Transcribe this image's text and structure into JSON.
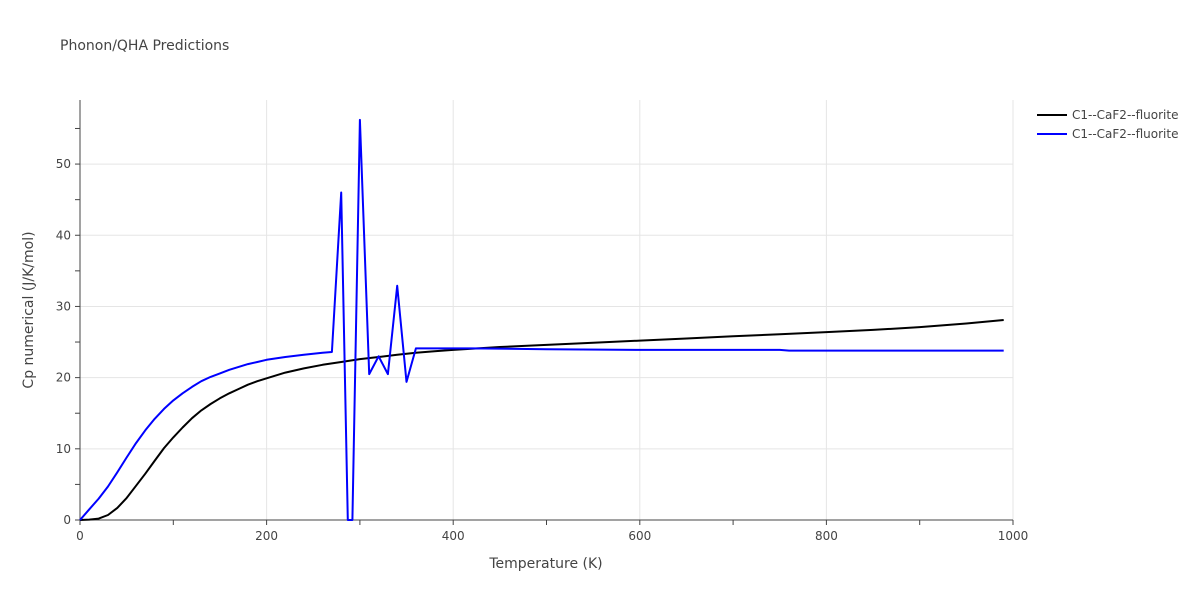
{
  "chart_data": {
    "type": "line",
    "title": "Phonon/QHA Predictions",
    "xlabel": "Temperature (K)",
    "ylabel": "Cp numerical (J/K/mol)",
    "xlim": [
      0,
      1000
    ],
    "ylim": [
      0,
      59
    ],
    "x_ticks": [
      0,
      200,
      400,
      600,
      800,
      1000
    ],
    "y_ticks": [
      0,
      10,
      20,
      30,
      40,
      50
    ],
    "grid": true,
    "legend_position": "top-right",
    "series": [
      {
        "name": "C1--CaF2--fluorite",
        "color": "#000000",
        "x": [
          0,
          10,
          20,
          30,
          40,
          50,
          60,
          70,
          80,
          90,
          100,
          110,
          120,
          130,
          140,
          150,
          160,
          170,
          180,
          190,
          200,
          220,
          240,
          260,
          280,
          300,
          320,
          340,
          360,
          380,
          400,
          450,
          500,
          550,
          600,
          650,
          700,
          750,
          800,
          850,
          900,
          950,
          990
        ],
        "y": [
          0,
          0.05,
          0.2,
          0.7,
          1.7,
          3.1,
          4.8,
          6.5,
          8.3,
          10.1,
          11.6,
          13.0,
          14.3,
          15.4,
          16.3,
          17.1,
          17.8,
          18.4,
          19.0,
          19.5,
          19.9,
          20.7,
          21.3,
          21.8,
          22.2,
          22.6,
          22.9,
          23.2,
          23.5,
          23.7,
          23.9,
          24.3,
          24.6,
          24.9,
          25.2,
          25.5,
          25.8,
          26.1,
          26.4,
          26.7,
          27.1,
          27.6,
          28.1
        ]
      },
      {
        "name": "C1--CaF2--fluorite",
        "color": "#0000ff",
        "x": [
          0,
          10,
          20,
          30,
          40,
          50,
          60,
          70,
          80,
          90,
          100,
          110,
          120,
          130,
          140,
          150,
          160,
          170,
          180,
          190,
          200,
          220,
          240,
          260,
          270,
          280,
          287,
          292,
          300,
          310,
          320,
          330,
          340,
          350,
          360,
          380,
          400,
          420,
          500,
          600,
          700,
          750,
          760,
          800,
          900,
          990
        ],
        "y": [
          0,
          1.5,
          3,
          4.7,
          6.7,
          8.8,
          10.8,
          12.6,
          14.2,
          15.6,
          16.8,
          17.8,
          18.7,
          19.5,
          20.1,
          20.6,
          21.1,
          21.5,
          21.9,
          22.2,
          22.5,
          22.9,
          23.2,
          23.5,
          23.6,
          46.0,
          0,
          0,
          56.2,
          20.5,
          23.0,
          20.5,
          32.9,
          19.4,
          24.1,
          24.1,
          24.1,
          24.1,
          24.0,
          23.9,
          23.9,
          23.9,
          23.8,
          23.8,
          23.8,
          23.8
        ]
      }
    ]
  }
}
